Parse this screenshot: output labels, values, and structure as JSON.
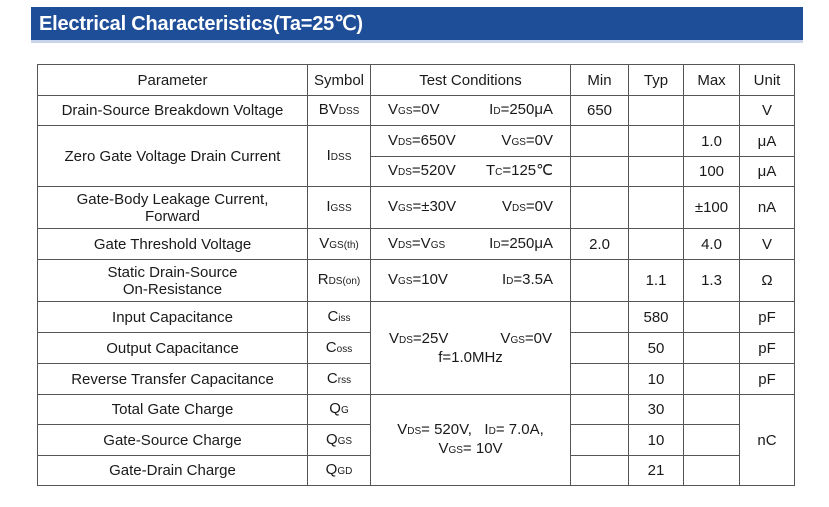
{
  "banner": {
    "title": "Electrical Characteristics(Ta=25℃)"
  },
  "headers": {
    "parameter": "Parameter",
    "symbol": "Symbol",
    "test": "Test Conditions",
    "min": "Min",
    "typ": "Typ",
    "max": "Max",
    "unit": "Unit"
  },
  "rows": {
    "bvdss": {
      "param": "Drain-Source Breakdown Voltage",
      "sym": "BV",
      "sym_sub": "DSS",
      "cond_a": "V",
      "cond_a_sub": "GS",
      "cond_a_val": "=0V",
      "cond_b": "I",
      "cond_b_sub": "D",
      "cond_b_val": "=250μA",
      "min": "650",
      "typ": "",
      "max": "",
      "unit": "V"
    },
    "idss": {
      "param": "Zero Gate Voltage Drain Current",
      "sym": "I",
      "sym_sub": "DSS",
      "c1a": "V",
      "c1a_sub": "DS",
      "c1a_val": "=650V",
      "c1b": "V",
      "c1b_sub": "GS",
      "c1b_val": "=0V",
      "max1": "1.0",
      "unit1": "μA",
      "c2a": "V",
      "c2a_sub": "DS",
      "c2a_val": "=520V",
      "c2b": "T",
      "c2b_sub": "C",
      "c2b_val": "=125℃",
      "max2": "100",
      "unit2": "μA"
    },
    "igss": {
      "param_l1": "Gate-Body Leakage Current,",
      "param_l2": "Forward",
      "sym": "I",
      "sym_sub": "GSS",
      "cond_a": "V",
      "cond_a_sub": "GS",
      "cond_a_val": "=±30V",
      "cond_b": "V",
      "cond_b_sub": "DS",
      "cond_b_val": "=0V",
      "max": "±100",
      "unit": "nA"
    },
    "vth": {
      "param": "Gate Threshold Voltage",
      "sym": "V",
      "sym_sub": "GS(th)",
      "cond_a": "V",
      "cond_a_sub": "DS",
      "cond_a_val": "=V",
      "cond_a_sub2": "GS",
      "cond_b": "I",
      "cond_b_sub": "D",
      "cond_b_val": "=250μA",
      "min": "2.0",
      "max": "4.0",
      "unit": "V"
    },
    "rds": {
      "param_l1": "Static Drain-Source",
      "param_l2": "On-Resistance",
      "sym": "R",
      "sym_sub": "DS(on)",
      "cond_a": "V",
      "cond_a_sub": "GS",
      "cond_a_val": "=10V",
      "cond_b": "I",
      "cond_b_sub": "D",
      "cond_b_val": "=3.5A",
      "typ": "1.1",
      "max": "1.3",
      "unit": "Ω"
    },
    "cap_cond": {
      "a": "V",
      "a_sub": "DS",
      "a_val": "=25V",
      "b": "V",
      "b_sub": "GS",
      "b_val": "=0V",
      "line2": "f=1.0MHz"
    },
    "ciss": {
      "param": "Input Capacitance",
      "sym": "C",
      "sym_sub": "iss",
      "typ": "580",
      "unit": "pF"
    },
    "coss": {
      "param": "Output Capacitance",
      "sym": "C",
      "sym_sub": "oss",
      "typ": "50",
      "unit": "pF"
    },
    "crss": {
      "param": "Reverse Transfer Capacitance",
      "sym": "C",
      "sym_sub": "rss",
      "typ": "10",
      "unit": "pF"
    },
    "q_cond": {
      "a": "V",
      "a_sub": "DS",
      "a_val": "= 520V,",
      "b": "I",
      "b_sub": "D",
      "b_val": "= 7.0A,",
      "c": "V",
      "c_sub": "GS",
      "c_val": "= 10V"
    },
    "qg": {
      "param": "Total Gate Charge",
      "sym": "Q",
      "sym_sub": "G",
      "typ": "30"
    },
    "qgs": {
      "param": "Gate-Source Charge",
      "sym": "Q",
      "sym_sub": "GS",
      "typ": "10"
    },
    "qgd": {
      "param": "Gate-Drain Charge",
      "sym": "Q",
      "sym_sub": "GD",
      "typ": "21"
    },
    "q_unit": "nC"
  }
}
